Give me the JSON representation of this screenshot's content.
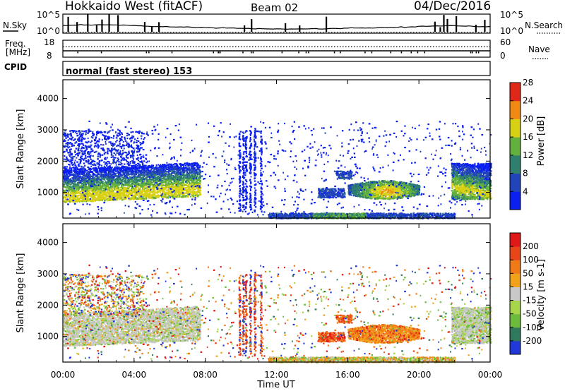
{
  "header": {
    "station": "Hokkaido West (fitACF)",
    "beam": "Beam 02",
    "date": "04/Dec/2016"
  },
  "strips": {
    "nsky_label": "N.Sky",
    "nsearch_label": "N.Search",
    "nsky_ticks": [
      "10^5",
      "10^0"
    ],
    "nsky_right_ticks": [
      "10^5",
      "10^0"
    ],
    "freq_label_1": "Freq.",
    "freq_label_2": "[MHz]",
    "freq_ticks": [
      "18",
      "8"
    ],
    "nave_label": "Nave",
    "nave_ticks": [
      "60",
      "0"
    ],
    "cpid_label": "CPID",
    "cpid_value": "normal (fast stereo) 153"
  },
  "chart_data": [
    {
      "type": "heatmap",
      "name_key": "power",
      "xlabel": "",
      "ylabel": "Slant Range [km]",
      "x_range_hours": [
        0,
        24
      ],
      "ylim": [
        180,
        4600
      ],
      "yticks": [
        1000,
        2000,
        3000,
        4000
      ],
      "colorbar": {
        "label": "Power [dB]",
        "ticks": [
          "4",
          "8",
          "12",
          "16",
          "20",
          "24",
          "28"
        ],
        "colors": [
          "#0a1ff0",
          "#2244bb",
          "#2f7f6e",
          "#63b03c",
          "#d8d014",
          "#f08a12",
          "#e02818"
        ]
      }
    },
    {
      "type": "heatmap",
      "name_key": "velocity",
      "xlabel": "Time UT",
      "ylabel": "Slant Range [km]",
      "x_range_hours": [
        0,
        24
      ],
      "xticks": [
        "00:00",
        "04:00",
        "08:00",
        "12:00",
        "16:00",
        "20:00",
        "00:00"
      ],
      "ylim": [
        180,
        4600
      ],
      "yticks": [
        1000,
        2000,
        3000,
        4000
      ],
      "colorbar": {
        "label": "Velocity [m s-1]",
        "ticks": [
          "200",
          "100",
          "50",
          "15",
          "-15",
          "-50",
          "-100",
          "-200"
        ],
        "colors": [
          "#2338d8",
          "#2f7a5c",
          "#6dbb3a",
          "#a8d64a",
          "#c8c8c8",
          "#f0a21a",
          "#f07a18",
          "#e84518",
          "#e01818"
        ]
      }
    }
  ]
}
